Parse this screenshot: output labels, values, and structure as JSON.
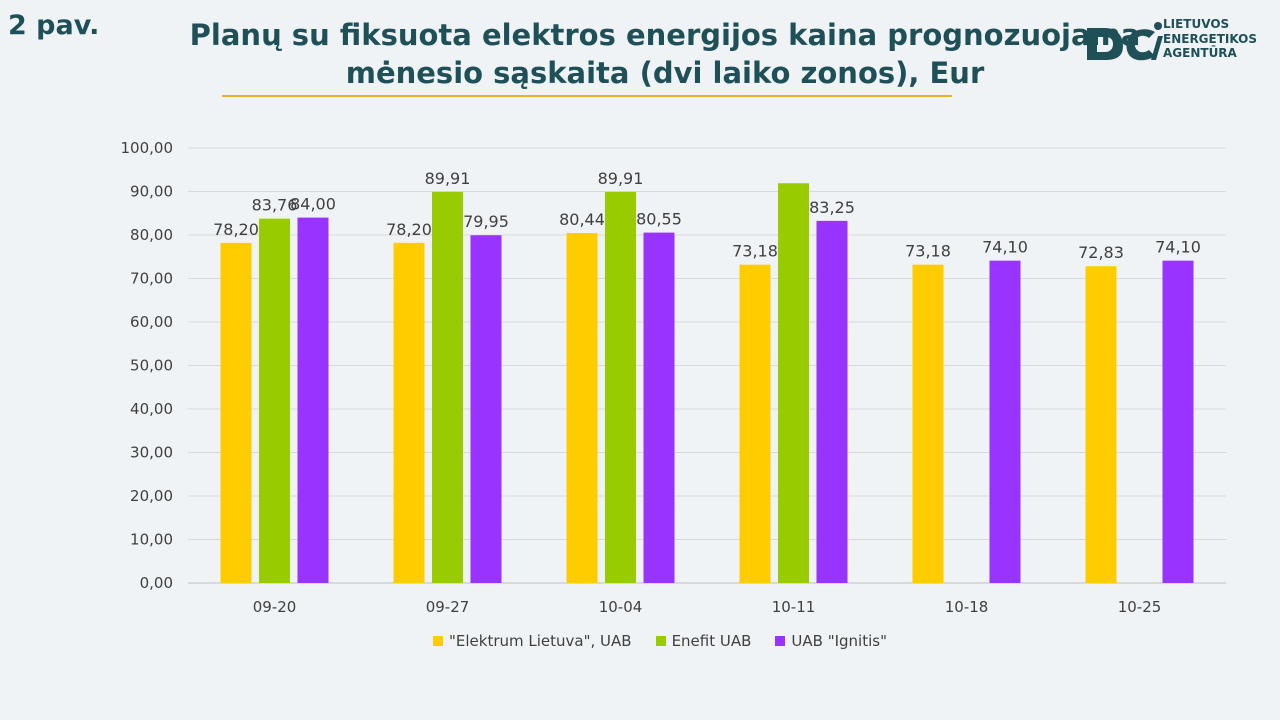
{
  "figure_label": "2 pav.",
  "title_line1": "Planų su fiksuota elektros energijos kaina prognozuojama",
  "title_line2": "mėnesio sąskaita (dvi laiko zonos), Eur",
  "logo": {
    "line1": "LIETUVOS",
    "line2": "ENERGETIKOS",
    "line3": "AGENTŪRA",
    "color": "#1f5058"
  },
  "chart_data": {
    "type": "bar",
    "categories": [
      "09-20",
      "09-27",
      "10-04",
      "10-11",
      "10-18",
      "10-25"
    ],
    "series": [
      {
        "name": "\"Elektrum Lietuva\", UAB",
        "color": "#ffcc00",
        "values": [
          78.2,
          78.2,
          80.44,
          73.18,
          73.18,
          72.83
        ],
        "labels": [
          "78,20",
          "78,20",
          "80,44",
          "73,18",
          "73,18",
          "72,83"
        ]
      },
      {
        "name": "Enefit UAB",
        "color": "#99cc00",
        "values": [
          83.76,
          89.91,
          89.91,
          91.9,
          null,
          null
        ],
        "labels": [
          "83,76",
          "89,91",
          "89,91",
          "",
          "",
          ""
        ]
      },
      {
        "name": "UAB \"Ignitis\"",
        "color": "#9933ff",
        "values": [
          84.0,
          79.95,
          80.55,
          83.25,
          74.1,
          74.1
        ],
        "labels": [
          "84,00",
          "79,95",
          "80,55",
          "83,25",
          "74,10",
          "74,10"
        ]
      }
    ],
    "yticks": [
      "0,00",
      "10,00",
      "20,00",
      "30,00",
      "40,00",
      "50,00",
      "60,00",
      "70,00",
      "80,00",
      "90,00",
      "100,00"
    ],
    "ylim": [
      0,
      100
    ],
    "grid": true,
    "legend_position": "bottom"
  }
}
